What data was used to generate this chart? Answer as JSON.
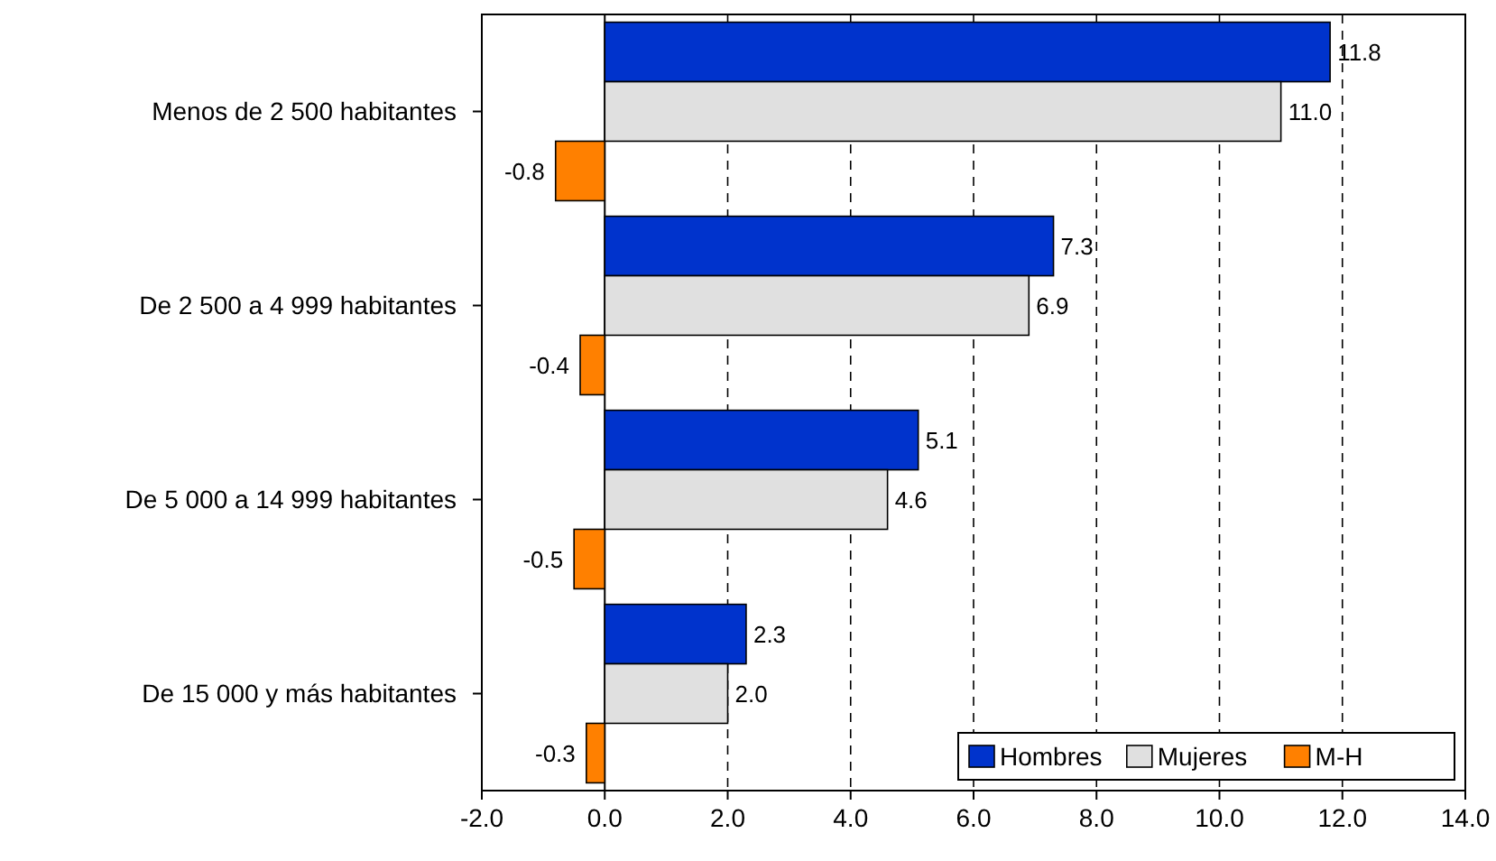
{
  "chart_data": {
    "type": "bar",
    "orientation": "horizontal",
    "categories": [
      "Menos de 2 500 habitantes",
      "De 2 500 a 4 999 habitantes",
      "De 5 000 a 14 999 habitantes",
      "De 15 000 y más habitantes"
    ],
    "series": [
      {
        "name": "Hombres",
        "color": "#0033cc",
        "values": [
          11.8,
          7.3,
          5.1,
          2.3
        ],
        "value_labels": [
          "11.8",
          "7.3",
          "5.1",
          "2.3"
        ]
      },
      {
        "name": "Mujeres",
        "color": "#e0e0e0",
        "values": [
          11.0,
          6.9,
          4.6,
          2.0
        ],
        "value_labels": [
          "11.0",
          "6.9",
          "4.6",
          "2.0"
        ]
      },
      {
        "name": "M-H",
        "color": "#ff8000",
        "values": [
          -0.8,
          -0.4,
          -0.5,
          -0.3
        ],
        "value_labels": [
          "-0.8",
          "-0.4",
          "-0.5",
          "-0.3"
        ]
      }
    ],
    "xlim": [
      -2,
      14
    ],
    "xticks": [
      {
        "value": -2,
        "label": "-2.0"
      },
      {
        "value": 0,
        "label": "0.0"
      },
      {
        "value": 2,
        "label": "2.0"
      },
      {
        "value": 4,
        "label": "4.0"
      },
      {
        "value": 6,
        "label": "6.0"
      },
      {
        "value": 8,
        "label": "8.0"
      },
      {
        "value": 10,
        "label": "10.0"
      },
      {
        "value": 12,
        "label": "12.0"
      },
      {
        "value": 14,
        "label": "14.0"
      }
    ],
    "grid": "x",
    "legend": "bottom right"
  }
}
